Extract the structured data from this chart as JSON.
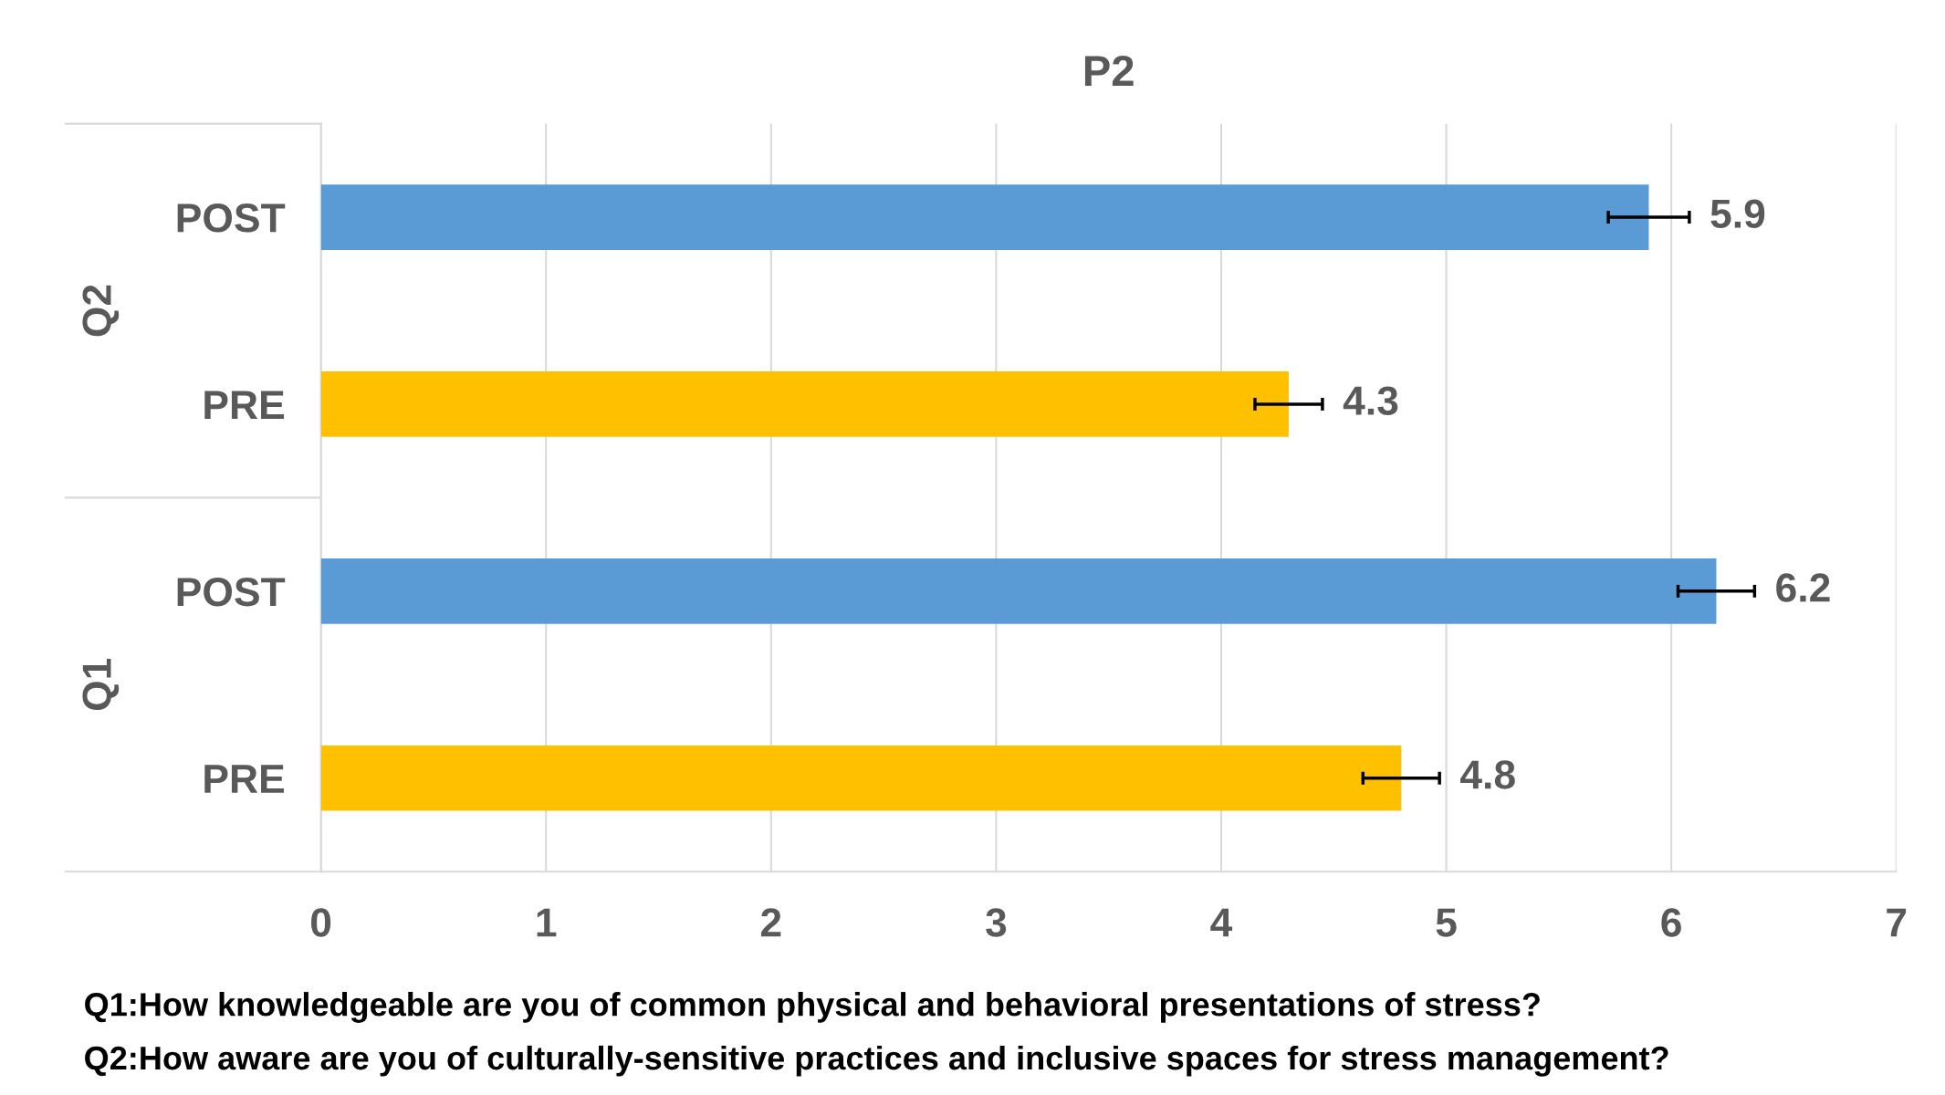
{
  "chart_data": {
    "type": "bar",
    "orientation": "horizontal",
    "title": "P2",
    "categories": [
      "POST",
      "PRE",
      "POST",
      "PRE"
    ],
    "values": [
      5.9,
      4.3,
      6.2,
      4.8
    ],
    "colors": [
      "#5b9bd5",
      "#ffc000",
      "#5b9bd5",
      "#ffc000"
    ],
    "errors": [
      0.18,
      0.15,
      0.17,
      0.17
    ],
    "xlim": [
      0,
      7
    ],
    "xticks": [
      0,
      1,
      2,
      3,
      4,
      5,
      6,
      7
    ],
    "grid": "x",
    "data_labels": true,
    "annotations": [
      "Q2",
      "Q1",
      "Q1:How knowledgeable are you of common physical and behavioral presentations of stress?",
      "Q2:How aware are you of culturally-sensitive practices and inclusive spaces for stress management?"
    ]
  }
}
